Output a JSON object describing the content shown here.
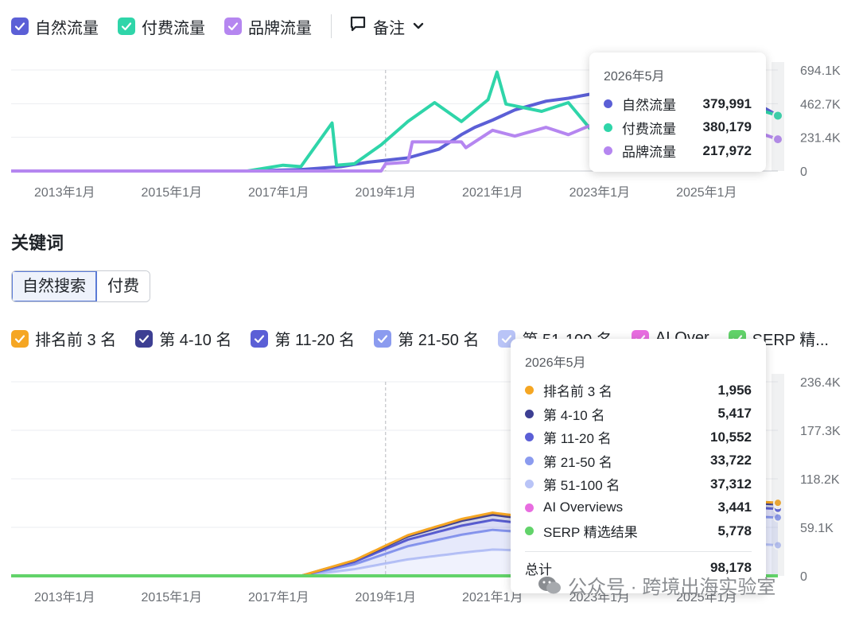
{
  "top": {
    "legend": [
      {
        "label": "自然流量",
        "color": "#5b5fd6",
        "icon": "check-icon"
      },
      {
        "label": "付费流量",
        "color": "#2fd5a9",
        "icon": "check-icon"
      },
      {
        "label": "品牌流量",
        "color": "#b586f0",
        "icon": "check-icon"
      }
    ],
    "note_label": "备注",
    "tooltip": {
      "date": "2026年5月",
      "rows": [
        {
          "label": "自然流量",
          "value": "379,991",
          "color": "#5b5fd6"
        },
        {
          "label": "付费流量",
          "value": "380,179",
          "color": "#2fd5a9"
        },
        {
          "label": "品牌流量",
          "value": "217,972",
          "color": "#b586f0"
        }
      ]
    }
  },
  "section_title": "关键词",
  "tabs": [
    {
      "label": "自然搜索",
      "active": true
    },
    {
      "label": "付费",
      "active": false
    }
  ],
  "bottom": {
    "legend": [
      {
        "label": "排名前 3 名",
        "color": "#f5a623"
      },
      {
        "label": "第 4-10 名",
        "color": "#3d3f93"
      },
      {
        "label": "第 11-20 名",
        "color": "#5b5fd6"
      },
      {
        "label": "第 21-50 名",
        "color": "#8b9bef"
      },
      {
        "label": "第 51-100 名",
        "color": "#b9c4f7"
      },
      {
        "label": "AI Over",
        "color": "#e86de0"
      },
      {
        "label": "SERP 精...",
        "color": "#62d36a"
      }
    ],
    "tooltip": {
      "date": "2026年5月",
      "rows": [
        {
          "label": "排名前 3 名",
          "value": "1,956",
          "color": "#f5a623"
        },
        {
          "label": "第 4-10 名",
          "value": "5,417",
          "color": "#3d3f93"
        },
        {
          "label": "第 11-20 名",
          "value": "10,552",
          "color": "#5b5fd6"
        },
        {
          "label": "第 21-50 名",
          "value": "33,722",
          "color": "#8b9bef"
        },
        {
          "label": "第 51-100 名",
          "value": "37,312",
          "color": "#b9c4f7"
        },
        {
          "label": "AI Overviews",
          "value": "3,441",
          "color": "#e86de0"
        },
        {
          "label": "SERP 精选结果",
          "value": "5,778",
          "color": "#62d36a"
        }
      ],
      "total_label": "总计",
      "total_value": "98,178"
    }
  },
  "watermark": "公众号 · 跨境出海实验室",
  "chart_data": [
    {
      "type": "line",
      "x_start": "2012-01",
      "x_end": "2026-05",
      "x_ticks": [
        "2013年1月",
        "2015年1月",
        "2017年1月",
        "2019年1月",
        "2021年1月",
        "2023年1月",
        "2025年1月"
      ],
      "y_ticks": [
        "0",
        "231.4K",
        "462.7K",
        "694.1K"
      ],
      "ylim": [
        0,
        694100
      ],
      "series": [
        {
          "name": "自然流量",
          "color": "#5b5fd6",
          "points": [
            [
              "2012-01",
              0
            ],
            [
              "2016-06",
              0
            ],
            [
              "2017-06",
              10000
            ],
            [
              "2018-03",
              30000
            ],
            [
              "2018-09",
              60000
            ],
            [
              "2019-06",
              90000
            ],
            [
              "2020-01",
              150000
            ],
            [
              "2020-06",
              250000
            ],
            [
              "2020-09",
              300000
            ],
            [
              "2021-01",
              350000
            ],
            [
              "2021-06",
              420000
            ],
            [
              "2022-01",
              480000
            ],
            [
              "2022-06",
              500000
            ],
            [
              "2023-01",
              540000
            ],
            [
              "2023-06",
              600000
            ],
            [
              "2024-01",
              650000
            ],
            [
              "2024-06",
              620000
            ],
            [
              "2025-01",
              570000
            ],
            [
              "2025-06",
              500000
            ],
            [
              "2026-01",
              450000
            ],
            [
              "2026-05",
              379991
            ]
          ]
        },
        {
          "name": "付费流量",
          "color": "#2fd5a9",
          "points": [
            [
              "2012-01",
              0
            ],
            [
              "2016-06",
              0
            ],
            [
              "2017-02",
              40000
            ],
            [
              "2017-06",
              30000
            ],
            [
              "2018-01",
              330000
            ],
            [
              "2018-02",
              40000
            ],
            [
              "2018-06",
              50000
            ],
            [
              "2018-12",
              180000
            ],
            [
              "2019-06",
              340000
            ],
            [
              "2019-12",
              470000
            ],
            [
              "2020-06",
              340000
            ],
            [
              "2020-12",
              490000
            ],
            [
              "2021-02",
              680000
            ],
            [
              "2021-04",
              460000
            ],
            [
              "2021-12",
              410000
            ],
            [
              "2022-06",
              470000
            ],
            [
              "2022-12",
              250000
            ],
            [
              "2023-06",
              220000
            ],
            [
              "2024-01",
              260000
            ],
            [
              "2024-06",
              300000
            ],
            [
              "2025-01",
              350000
            ],
            [
              "2025-06",
              380000
            ],
            [
              "2026-01",
              420000
            ],
            [
              "2026-05",
              380179
            ]
          ]
        },
        {
          "name": "品牌流量",
          "color": "#b586f0",
          "points": [
            [
              "2012-01",
              0
            ],
            [
              "2018-12",
              0
            ],
            [
              "2019-01",
              50000
            ],
            [
              "2019-06",
              60000
            ],
            [
              "2019-07",
              200000
            ],
            [
              "2020-06",
              200000
            ],
            [
              "2020-07",
              160000
            ],
            [
              "2021-01",
              280000
            ],
            [
              "2021-06",
              240000
            ],
            [
              "2022-01",
              300000
            ],
            [
              "2022-06",
              250000
            ],
            [
              "2023-01",
              340000
            ],
            [
              "2023-06",
              300000
            ],
            [
              "2024-01",
              330000
            ],
            [
              "2025-01",
              300000
            ],
            [
              "2026-01",
              260000
            ],
            [
              "2026-05",
              217972
            ]
          ]
        }
      ],
      "hover_date": "2026-05",
      "grid": true
    },
    {
      "type": "area",
      "stacked": true,
      "x_start": "2012-01",
      "x_end": "2026-05",
      "x_ticks": [
        "2013年1月",
        "2015年1月",
        "2017年1月",
        "2019年1月",
        "2021年1月",
        "2023年1月",
        "2025年1月"
      ],
      "y_ticks": [
        "0",
        "59.1K",
        "118.2K",
        "177.3K",
        "236.4K"
      ],
      "ylim": [
        0,
        236400
      ],
      "series": [
        {
          "name": "第 51-100 名",
          "color": "#b9c4f7",
          "points": [
            [
              "2012-01",
              0
            ],
            [
              "2017-06",
              0
            ],
            [
              "2018-06",
              8000
            ],
            [
              "2019-06",
              20000
            ],
            [
              "2020-06",
              28000
            ],
            [
              "2021-01",
              32000
            ],
            [
              "2022-01",
              30000
            ],
            [
              "2023-01",
              36000
            ],
            [
              "2024-01",
              40000
            ],
            [
              "2025-01",
              42000
            ],
            [
              "2026-05",
              37312
            ]
          ]
        },
        {
          "name": "第 21-50 名",
          "color": "#8b9bef",
          "points": [
            [
              "2012-01",
              0
            ],
            [
              "2017-06",
              0
            ],
            [
              "2018-06",
              6000
            ],
            [
              "2019-06",
              16000
            ],
            [
              "2020-06",
              22000
            ],
            [
              "2021-01",
              24000
            ],
            [
              "2022-01",
              21000
            ],
            [
              "2023-01",
              26000
            ],
            [
              "2024-01",
              30000
            ],
            [
              "2025-01",
              32000
            ],
            [
              "2026-05",
              33722
            ]
          ]
        },
        {
          "name": "第 11-20 名",
          "color": "#5b5fd6",
          "points": [
            [
              "2012-01",
              0
            ],
            [
              "2017-06",
              0
            ],
            [
              "2018-06",
              3000
            ],
            [
              "2019-06",
              8000
            ],
            [
              "2020-06",
              11000
            ],
            [
              "2021-01",
              12000
            ],
            [
              "2022-01",
              10000
            ],
            [
              "2023-01",
              12000
            ],
            [
              "2024-01",
              14000
            ],
            [
              "2025-01",
              12000
            ],
            [
              "2026-05",
              10552
            ]
          ]
        },
        {
          "name": "第 4-10 名",
          "color": "#3d3f93",
          "points": [
            [
              "2012-01",
              0
            ],
            [
              "2017-06",
              0
            ],
            [
              "2018-06",
              1500
            ],
            [
              "2019-06",
              4000
            ],
            [
              "2020-06",
              6000
            ],
            [
              "2021-01",
              6500
            ],
            [
              "2022-01",
              5500
            ],
            [
              "2023-01",
              6500
            ],
            [
              "2024-01",
              7000
            ],
            [
              "2025-01",
              6000
            ],
            [
              "2026-05",
              5417
            ]
          ]
        },
        {
          "name": "排名前 3 名",
          "color": "#f5a623",
          "points": [
            [
              "2012-01",
              0
            ],
            [
              "2017-06",
              0
            ],
            [
              "2018-06",
              500
            ],
            [
              "2019-06",
              1500
            ],
            [
              "2020-06",
              2200
            ],
            [
              "2021-01",
              2500
            ],
            [
              "2022-01",
              2000
            ],
            [
              "2023-01",
              2300
            ],
            [
              "2024-01",
              2500
            ],
            [
              "2025-01",
              2200
            ],
            [
              "2026-05",
              1956
            ]
          ]
        }
      ],
      "hover_date": "2026-05",
      "grid": true
    }
  ]
}
